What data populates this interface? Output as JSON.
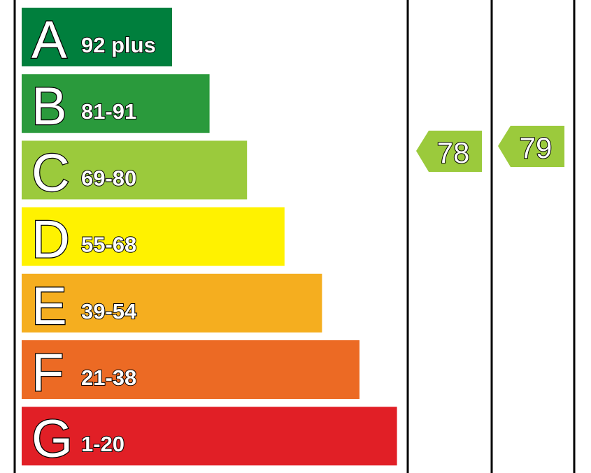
{
  "bands": [
    {
      "letter": "A",
      "range": "92 plus",
      "color": "#007f3d"
    },
    {
      "letter": "B",
      "range": "81-91",
      "color": "#2a9a3c"
    },
    {
      "letter": "C",
      "range": "69-80",
      "color": "#9bca3c"
    },
    {
      "letter": "D",
      "range": "55-68",
      "color": "#fff200"
    },
    {
      "letter": "E",
      "range": "39-54",
      "color": "#f5ae1f"
    },
    {
      "letter": "F",
      "range": "21-38",
      "color": "#ec6a24"
    },
    {
      "letter": "G",
      "range": "1-20",
      "color": "#e11f26"
    }
  ],
  "current": {
    "rating": "78",
    "color": "#9bca3c"
  },
  "potential": {
    "rating": "79",
    "color": "#9bca3c"
  }
}
